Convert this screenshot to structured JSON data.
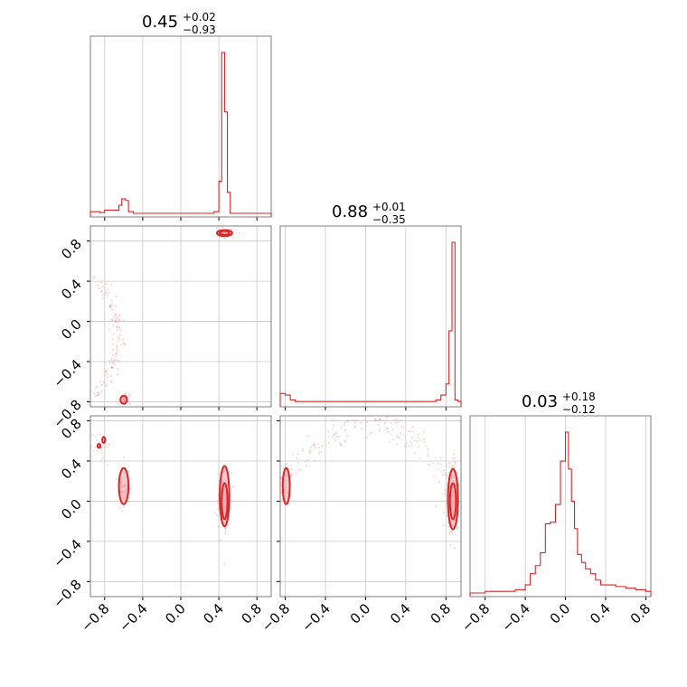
{
  "chart_data": {
    "type": "scatter",
    "title": "",
    "ticks": [
      "−0.8",
      "−0.4",
      "0.0",
      "0.4",
      "0.8"
    ],
    "tick_values": [
      -0.8,
      -0.4,
      0.0,
      0.4,
      0.8
    ],
    "params": [
      {
        "median": "0.45",
        "upper": "+0.02",
        "lower": "−0.93",
        "xlim": [
          -0.95,
          0.95
        ]
      },
      {
        "median": "0.88",
        "upper": "+0.01",
        "lower": "−0.35",
        "xlim": [
          -0.85,
          0.95
        ]
      },
      {
        "median": "0.03",
        "upper": "+0.18",
        "lower": "−0.12",
        "xlim": [
          -0.95,
          0.85
        ]
      }
    ],
    "hist_1d": [
      {
        "edges": [
          -0.95,
          -0.85,
          -0.8,
          -0.7,
          -0.65,
          -0.62,
          -0.58,
          -0.55,
          -0.5,
          0.35,
          0.4,
          0.43,
          0.46,
          0.49,
          0.52,
          0.95
        ],
        "values": [
          0.01,
          0.005,
          0.02,
          0.02,
          0.05,
          0.09,
          0.08,
          0.01,
          0.0,
          0.01,
          0.2,
          1.0,
          0.63,
          0.13,
          0.0
        ]
      },
      {
        "edges": [
          -0.85,
          -0.8,
          -0.75,
          -0.7,
          -0.6,
          0.0,
          0.6,
          0.7,
          0.75,
          0.8,
          0.83,
          0.86,
          0.89,
          0.92,
          0.95
        ],
        "values": [
          0.06,
          0.05,
          0.02,
          0.01,
          0.01,
          0.01,
          0.01,
          0.02,
          0.05,
          0.12,
          0.45,
          1.0,
          0.02,
          0.01
        ]
      },
      {
        "edges": [
          -0.95,
          -0.8,
          -0.6,
          -0.5,
          -0.4,
          -0.35,
          -0.3,
          -0.25,
          -0.2,
          -0.15,
          -0.1,
          -0.05,
          0.0,
          0.03,
          0.06,
          0.09,
          0.12,
          0.16,
          0.2,
          0.25,
          0.3,
          0.35,
          0.4,
          0.45,
          0.5,
          0.6,
          0.7,
          0.8,
          0.85
        ],
        "values": [
          0.0,
          0.01,
          0.01,
          0.02,
          0.05,
          0.12,
          0.17,
          0.25,
          0.43,
          0.44,
          0.55,
          0.82,
          1.0,
          0.77,
          0.57,
          0.4,
          0.24,
          0.19,
          0.15,
          0.12,
          0.08,
          0.05,
          0.05,
          0.05,
          0.04,
          0.03,
          0.02,
          0.01
        ]
      }
    ],
    "hist_2d": [
      {
        "x_param": 0,
        "y_param": 1,
        "ylim": [
          -0.85,
          0.95
        ],
        "clusters": [
          {
            "center": [
              0.46,
              0.87
            ],
            "spread": [
              0.04,
              0.02
            ],
            "n": 70
          },
          {
            "center": [
              -0.6,
              -0.78
            ],
            "spread": [
              0.03,
              0.03
            ],
            "n": 40
          }
        ],
        "arc": {
          "x_range": [
            -0.95,
            -0.6
          ],
          "y_range": [
            -0.75,
            0.45
          ],
          "n": 110
        },
        "contours": [
          {
            "center": [
              0.46,
              0.88
            ],
            "radii": [
              0.08,
              0.03
            ]
          },
          {
            "center": [
              0.46,
              0.88
            ],
            "radii": [
              0.05,
              0.02
            ]
          },
          {
            "center": [
              -0.6,
              -0.78
            ],
            "radii": [
              0.035,
              0.04
            ]
          }
        ]
      },
      {
        "x_param": 0,
        "y_param": 2,
        "ylim": [
          -0.95,
          0.85
        ],
        "clusters": [
          {
            "center": [
              0.46,
              0.02
            ],
            "spread": [
              0.03,
              0.15
            ],
            "n": 110
          },
          {
            "center": [
              -0.6,
              0.12
            ],
            "spread": [
              0.03,
              0.1
            ],
            "n": 55
          },
          {
            "center": [
              -0.85,
              0.55
            ],
            "spread": [
              0.05,
              0.08
            ],
            "n": 25
          }
        ],
        "contours": [
          {
            "center": [
              0.46,
              0.05
            ],
            "radii": [
              0.05,
              0.3
            ]
          },
          {
            "center": [
              0.46,
              0.0
            ],
            "radii": [
              0.03,
              0.18
            ]
          },
          {
            "center": [
              -0.6,
              0.15
            ],
            "radii": [
              0.05,
              0.18
            ]
          },
          {
            "center": [
              -0.81,
              0.61
            ],
            "radii": [
              0.015,
              0.03
            ]
          },
          {
            "center": [
              -0.86,
              0.55
            ],
            "radii": [
              0.015,
              0.02
            ]
          }
        ]
      },
      {
        "x_param": 1,
        "y_param": 2,
        "ylim": [
          -0.95,
          0.85
        ],
        "clusters": [
          {
            "center": [
              0.86,
              0.02
            ],
            "spread": [
              0.04,
              0.2
            ],
            "n": 130
          },
          {
            "center": [
              -0.82,
              0.15
            ],
            "spread": [
              0.03,
              0.1
            ],
            "n": 40
          }
        ],
        "arc": {
          "x_range": [
            -0.8,
            0.85
          ],
          "y_range": [
            0.25,
            0.8
          ],
          "n": 160
        },
        "contours": [
          {
            "center": [
              0.87,
              0.02
            ],
            "radii": [
              0.05,
              0.3
            ]
          },
          {
            "center": [
              0.87,
              0.0
            ],
            "radii": [
              0.03,
              0.18
            ]
          },
          {
            "center": [
              -0.79,
              0.15
            ],
            "radii": [
              0.035,
              0.18
            ]
          }
        ]
      }
    ]
  }
}
